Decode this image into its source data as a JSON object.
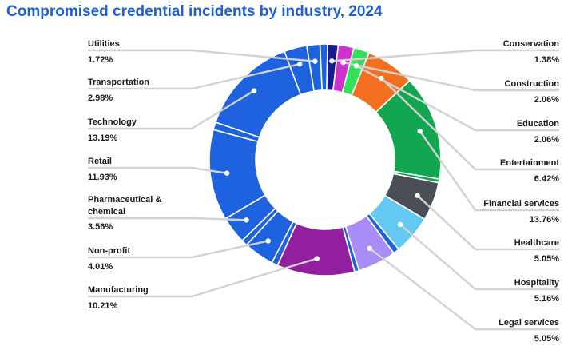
{
  "chart_data": {
    "type": "pie",
    "title": "Compromised credential incidents by industry, 2024",
    "donut": true,
    "slices": [
      {
        "label": "Conservation",
        "value": 1.38,
        "display": "1.38%",
        "color": "#1a1a8e"
      },
      {
        "label": "Construction",
        "value": 2.06,
        "display": "2.06%",
        "color": "#cc33cc"
      },
      {
        "label": "Education",
        "value": 2.06,
        "display": "2.06%",
        "color": "#33e05a"
      },
      {
        "label": "Entertainment",
        "value": 6.42,
        "display": "6.42%",
        "color": "#f37021"
      },
      {
        "label": "Financial services",
        "value": 13.76,
        "display": "13.76%",
        "color": "#12a650"
      },
      {
        "label": "Healthcare",
        "value": 5.05,
        "display": "5.05%",
        "color": "#4a4f55"
      },
      {
        "label": "Hospitality",
        "value": 5.16,
        "display": "5.16%",
        "color": "#63c9f2"
      },
      {
        "label": "Legal services",
        "value": 5.05,
        "display": "5.05%",
        "color": "#a98cf5"
      },
      {
        "label": "Manufacturing",
        "value": 10.21,
        "display": "10.21%",
        "color": "#92209e"
      },
      {
        "label": "Non-profit",
        "value": 4.01,
        "display": "4.01%",
        "color": "#1e62e0"
      },
      {
        "label": "Pharmaceutical & chemical",
        "value": 3.56,
        "display": "3.56%",
        "color": "#1e62e0"
      },
      {
        "label": "Retail",
        "value": 11.93,
        "display": "11.93%",
        "color": "#1e62e0"
      },
      {
        "label": "Technology",
        "value": 13.19,
        "display": "13.19%",
        "color": "#1e62e0"
      },
      {
        "label": "Transportation",
        "value": 2.98,
        "display": "2.98%",
        "color": "#1e62e0"
      },
      {
        "label": "Utilities",
        "value": 1.72,
        "display": "1.72%",
        "color": "#1e62e0"
      }
    ],
    "unlabeled_slices": [
      {
        "value": 1.0,
        "color": "#1e62e0"
      },
      {
        "value": 0.5,
        "color": "#12a650"
      },
      {
        "value": 0.8,
        "color": "#1e62e0"
      },
      {
        "value": 0.6,
        "color": "#1e62e0"
      },
      {
        "value": 0.8,
        "color": "#1e62e0"
      },
      {
        "value": 0.8,
        "color": "#1e62e0"
      },
      {
        "value": 1.0,
        "color": "#1e62e0"
      }
    ]
  }
}
